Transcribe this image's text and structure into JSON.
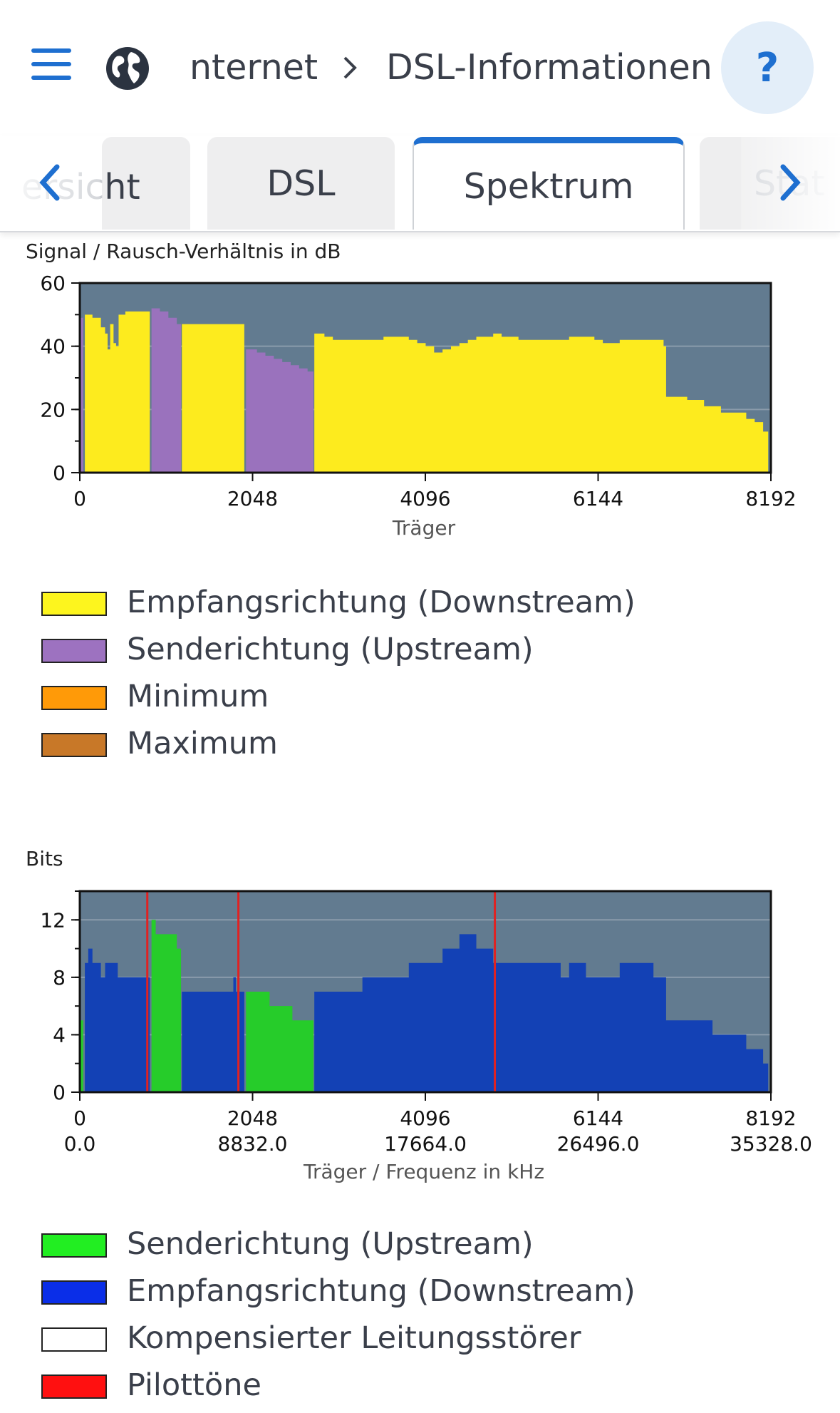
{
  "header": {
    "menu_icon": "hamburger-icon",
    "globe_icon": "globe-icon",
    "breadcrumb_root": "nternet",
    "breadcrumb_page": "DSL-Informationen",
    "help_label": "?"
  },
  "tabs": {
    "partial_left": "ersicht",
    "partial_left_visible": "ht",
    "items": [
      "DSL",
      "Spektrum"
    ],
    "active": "Spektrum",
    "partial_right": "Stat"
  },
  "colors": {
    "plot_bg": "#627b90",
    "downstream_snr": "#fdeb1e",
    "upstream_snr": "#9a72bd",
    "upstream_bits": "#26cc2a",
    "downstream_bits": "#1341b5",
    "pilot": "#e02222",
    "accent": "#1e6fd0"
  },
  "chart_data": [
    {
      "type": "area",
      "title": "Signal / Rausch-Verhältnis in dB",
      "xlabel": "Träger",
      "xlim": [
        0,
        8192
      ],
      "ylim": [
        0,
        60
      ],
      "xticks": [
        "0",
        "2048",
        "4096",
        "6144",
        "8192"
      ],
      "yticks": [
        "0",
        "20",
        "40",
        "60"
      ],
      "grid": true,
      "series": [
        {
          "name": "Empfangsrichtung (Downstream)",
          "color": "#fdeb1e",
          "segments": [
            [
              [
                60,
                50
              ],
              [
                150,
                49
              ],
              [
                250,
                46
              ],
              [
                300,
                44
              ],
              [
                330,
                39
              ],
              [
                360,
                47
              ],
              [
                400,
                41
              ],
              [
                430,
                40
              ],
              [
                460,
                50
              ],
              [
                540,
                51
              ],
              [
                630,
                51
              ],
              [
                660,
                51
              ],
              [
                830,
                51
              ]
            ],
            [
              [
                1210,
                47
              ],
              [
                1300,
                47
              ],
              [
                1400,
                47
              ],
              [
                1500,
                47
              ],
              [
                1950,
                47
              ]
            ],
            [
              [
                2780,
                44
              ],
              [
                2900,
                43
              ],
              [
                3000,
                42
              ],
              [
                3200,
                42
              ],
              [
                3300,
                42
              ],
              [
                3500,
                42
              ],
              [
                3600,
                43
              ],
              [
                3800,
                43
              ],
              [
                3900,
                42
              ],
              [
                4000,
                41
              ],
              [
                4100,
                40
              ],
              [
                4200,
                38
              ],
              [
                4300,
                39
              ],
              [
                4400,
                40
              ],
              [
                4500,
                41
              ],
              [
                4600,
                42
              ],
              [
                4700,
                43
              ],
              [
                4800,
                43
              ],
              [
                4900,
                44
              ],
              [
                5000,
                43
              ],
              [
                5200,
                42
              ],
              [
                5400,
                42
              ],
              [
                5600,
                42
              ],
              [
                5800,
                43
              ],
              [
                6000,
                43
              ],
              [
                6100,
                42
              ],
              [
                6200,
                41
              ],
              [
                6400,
                42
              ],
              [
                6600,
                42
              ],
              [
                6800,
                42
              ],
              [
                6880,
                42
              ],
              [
                6920,
                40
              ],
              [
                6950,
                24
              ],
              [
                7100,
                24
              ],
              [
                7200,
                23
              ],
              [
                7400,
                21
              ],
              [
                7600,
                19
              ],
              [
                7800,
                19
              ],
              [
                7900,
                17
              ],
              [
                8000,
                16
              ],
              [
                8100,
                13
              ],
              [
                8160,
                12
              ]
            ]
          ]
        },
        {
          "name": "Senderichtung (Upstream)",
          "color": "#9a72bd",
          "segments": [
            [
              [
                0,
                49
              ],
              [
                40,
                49
              ]
            ],
            [
              [
                850,
                52
              ],
              [
                950,
                51
              ],
              [
                1050,
                49
              ],
              [
                1150,
                47
              ],
              [
                1200,
                47
              ]
            ],
            [
              [
                1970,
                39
              ],
              [
                2100,
                38
              ],
              [
                2200,
                37
              ],
              [
                2300,
                36
              ],
              [
                2400,
                35
              ],
              [
                2500,
                34
              ],
              [
                2600,
                33
              ],
              [
                2700,
                32
              ],
              [
                2770,
                32
              ]
            ]
          ]
        },
        {
          "name": "Minimum",
          "color": "#ff9a08",
          "segments": []
        },
        {
          "name": "Maximum",
          "color": "#c87828",
          "segments": []
        }
      ],
      "legend": [
        "Empfangsrichtung (Downstream)",
        "Senderichtung (Upstream)",
        "Minimum",
        "Maximum"
      ]
    },
    {
      "type": "area",
      "title": "Bits",
      "xlabel": "Träger / Frequenz in kHz",
      "xlim": [
        0,
        8192
      ],
      "ylim": [
        0,
        14
      ],
      "xticks": [
        "0",
        "2048",
        "4096",
        "6144",
        "8192"
      ],
      "xticks2": [
        "0.0",
        "8832.0",
        "17664.0",
        "26496.0",
        "35328.0"
      ],
      "yticks": [
        "0",
        "4",
        "8",
        "12"
      ],
      "grid": true,
      "series": [
        {
          "name": "Senderichtung (Upstream)",
          "color": "#26cc2a",
          "segments": [
            [
              [
                0,
                5
              ],
              [
                40,
                4
              ]
            ],
            [
              [
                850,
                12
              ],
              [
                900,
                11
              ],
              [
                1000,
                11
              ],
              [
                1100,
                11
              ],
              [
                1150,
                10
              ],
              [
                1200,
                10
              ]
            ],
            [
              [
                1970,
                7
              ],
              [
                2100,
                7
              ],
              [
                2200,
                7
              ],
              [
                2250,
                6
              ],
              [
                2400,
                6
              ],
              [
                2500,
                6
              ],
              [
                2520,
                5
              ],
              [
                2600,
                5
              ],
              [
                2770,
                5
              ]
            ]
          ]
        },
        {
          "name": "Empfangsrichtung (Downstream)",
          "color": "#1341b5",
          "segments": [
            [
              [
                60,
                9
              ],
              [
                100,
                10
              ],
              [
                150,
                9
              ],
              [
                200,
                9
              ],
              [
                250,
                8
              ],
              [
                300,
                9
              ],
              [
                350,
                9
              ],
              [
                400,
                9
              ],
              [
                450,
                8
              ],
              [
                500,
                8
              ],
              [
                600,
                8
              ],
              [
                700,
                8
              ],
              [
                830,
                8
              ]
            ],
            [
              [
                1210,
                7
              ],
              [
                1400,
                7
              ],
              [
                1600,
                7
              ],
              [
                1800,
                7
              ],
              [
                1820,
                8
              ],
              [
                1850,
                7
              ],
              [
                1950,
                7
              ]
            ],
            [
              [
                2780,
                7
              ],
              [
                3000,
                7
              ],
              [
                3200,
                7
              ],
              [
                3300,
                7
              ],
              [
                3350,
                8
              ],
              [
                3500,
                8
              ],
              [
                3600,
                8
              ],
              [
                3700,
                8
              ],
              [
                3800,
                8
              ],
              [
                3900,
                9
              ],
              [
                4000,
                9
              ],
              [
                4200,
                9
              ],
              [
                4300,
                10
              ],
              [
                4400,
                10
              ],
              [
                4500,
                11
              ],
              [
                4600,
                11
              ],
              [
                4700,
                10
              ],
              [
                4800,
                10
              ],
              [
                4900,
                9
              ],
              [
                5000,
                9
              ],
              [
                5200,
                9
              ],
              [
                5400,
                9
              ],
              [
                5600,
                9
              ],
              [
                5700,
                8
              ],
              [
                5800,
                9
              ],
              [
                5900,
                9
              ],
              [
                6000,
                8
              ],
              [
                6200,
                8
              ],
              [
                6400,
                9
              ],
              [
                6600,
                9
              ],
              [
                6800,
                8
              ],
              [
                6950,
                5
              ],
              [
                7200,
                5
              ],
              [
                7400,
                5
              ],
              [
                7500,
                4
              ],
              [
                7800,
                4
              ],
              [
                7900,
                3
              ],
              [
                8000,
                3
              ],
              [
                8100,
                2
              ],
              [
                8160,
                2
              ]
            ]
          ]
        },
        {
          "name": "Kompensierter Leitungsstörer",
          "color": "#ffffff",
          "segments": []
        },
        {
          "name": "Pilottöne",
          "color": "#e02222",
          "pilots": [
            800,
            1880,
            4920
          ]
        }
      ],
      "legend": [
        "Senderichtung (Upstream)",
        "Empfangsrichtung (Downstream)",
        "Kompensierter Leitungsstörer",
        "Pilottöne"
      ]
    }
  ],
  "legend1": [
    {
      "label": "Empfangsrichtung (Downstream)",
      "color": "#fdf51e"
    },
    {
      "label": "Senderichtung (Upstream)",
      "color": "#9d72c0"
    },
    {
      "label": "Minimum",
      "color": "#ff9a08"
    },
    {
      "label": "Maximum",
      "color": "#c87828"
    }
  ],
  "legend2": [
    {
      "label": "Senderichtung (Upstream)",
      "color": "#22ee22"
    },
    {
      "label": "Empfangsrichtung (Downstream)",
      "color": "#0a2ee8"
    },
    {
      "label": "Kompensierter Leitungsstörer",
      "color": "#ffffff"
    },
    {
      "label": "Pilottöne",
      "color": "#ff1010"
    }
  ]
}
